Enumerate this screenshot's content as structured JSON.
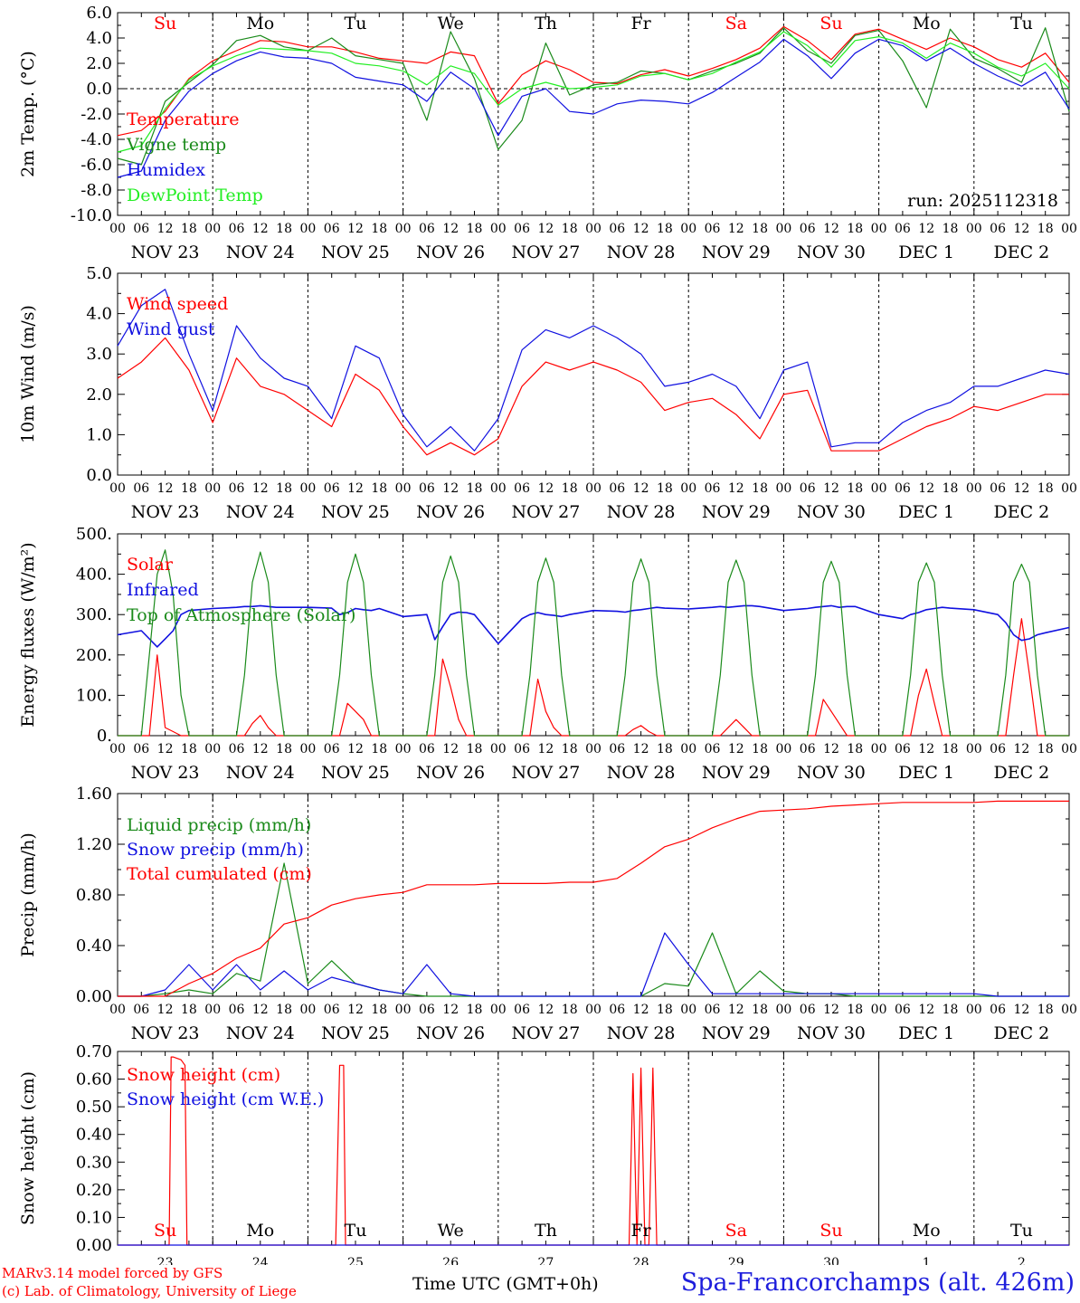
{
  "colors": {
    "red": "#ff0000",
    "green": "#1a8a1a",
    "blue": "#1010e0",
    "lightgreen": "#22ee22"
  },
  "run_label": "run: 2025112318",
  "day_names": [
    "Su",
    "Mo",
    "Tu",
    "We",
    "Th",
    "Fr",
    "Sa",
    "Su",
    "Mo",
    "Tu"
  ],
  "weekend_flags": [
    true,
    false,
    false,
    false,
    false,
    false,
    true,
    true,
    false,
    false
  ],
  "date_labels": [
    "NOV 23",
    "NOV 24",
    "NOV 25",
    "NOV 26",
    "NOV 27",
    "NOV 28",
    "NOV 29",
    "NOV 30",
    "DEC  1",
    "DEC  2"
  ],
  "hour_ticks": [
    "00",
    "06",
    "12",
    "18"
  ],
  "final_hour_tick": "00",
  "bottom_day_numbers": [
    "23",
    "24",
    "25",
    "26",
    "27",
    "28",
    "29",
    "30",
    "1",
    "2"
  ],
  "footer": {
    "credit_line1": "MARv3.14 model forced by GFS",
    "credit_line2": "(c) Lab. of Climatology, University of Liege",
    "x_axis_title": "Time UTC (GMT+0h)",
    "station": "Spa-Francorchamps (alt. 426m)"
  },
  "chart_data": [
    {
      "type": "line",
      "ylabel": "2m Temp. (°C)",
      "ylim": [
        -10,
        6
      ],
      "yticks": [
        6,
        4,
        2,
        0,
        -2,
        -4,
        -6,
        -8,
        -10
      ],
      "ytick_labels": [
        "6.0",
        "4.0",
        "2.0",
        "0.0",
        "-2.0",
        "-4.0",
        "-6.0",
        "-8.0",
        "-10.0"
      ],
      "zero_line": true,
      "x_hours_from_start": [
        0,
        6,
        12,
        18,
        24,
        30,
        36,
        42,
        48,
        54,
        60,
        66,
        72,
        78,
        84,
        90,
        96,
        102,
        108,
        114,
        120,
        126,
        132,
        138,
        144,
        150,
        156,
        162,
        168,
        174,
        180,
        186,
        192,
        198,
        204,
        210,
        216,
        222,
        228,
        234,
        240
      ],
      "series": [
        {
          "name": "Temperature",
          "color": "red",
          "values": [
            -3.7,
            -3.3,
            -1.8,
            0.8,
            2.2,
            3.0,
            3.8,
            3.7,
            3.3,
            3.3,
            2.9,
            2.4,
            2.2,
            2.0,
            2.9,
            2.6,
            -1.2,
            1.1,
            2.2,
            1.5,
            0.5,
            0.4,
            1.1,
            1.5,
            1.0,
            1.6,
            2.3,
            3.2,
            4.9,
            3.8,
            2.3,
            4.3,
            4.7,
            3.9,
            3.1,
            4.0,
            3.3,
            2.3,
            1.7,
            2.8,
            0.5
          ]
        },
        {
          "name": "Vigne temp",
          "color": "green",
          "values": [
            -5.5,
            -6.0,
            -1.0,
            0.5,
            1.9,
            3.8,
            4.2,
            3.3,
            3.0,
            4.0,
            2.6,
            2.3,
            2.0,
            -2.5,
            4.5,
            0.8,
            -4.8,
            -2.5,
            3.6,
            -0.5,
            0.3,
            0.5,
            1.4,
            1.2,
            0.7,
            1.4,
            2.0,
            2.8,
            4.8,
            3.0,
            2.0,
            4.2,
            4.6,
            2.2,
            -1.5,
            4.7,
            2.4,
            1.6,
            0.5,
            4.8,
            -1.8
          ]
        },
        {
          "name": "Humidex",
          "color": "blue",
          "values": [
            -7.0,
            -6.5,
            -2.5,
            -0.2,
            1.2,
            2.2,
            2.9,
            2.5,
            2.4,
            2.0,
            0.9,
            0.6,
            0.3,
            -1.0,
            1.3,
            0.0,
            -3.7,
            -0.6,
            0.0,
            -1.8,
            -2.0,
            -1.2,
            -0.9,
            -1.0,
            -1.2,
            -0.3,
            0.9,
            2.1,
            3.9,
            2.6,
            0.8,
            2.8,
            3.9,
            3.4,
            2.2,
            3.2,
            2.0,
            1.0,
            0.2,
            1.3,
            -1.6
          ]
        },
        {
          "name": "DewPoint Temp",
          "color": "lightgreen",
          "values": [
            -5.0,
            -4.5,
            -1.6,
            0.7,
            1.8,
            2.6,
            3.2,
            3.1,
            3.0,
            2.8,
            2.0,
            1.8,
            1.4,
            0.3,
            1.8,
            1.2,
            -1.3,
            0.0,
            0.5,
            0.0,
            0.1,
            0.3,
            1.0,
            1.2,
            0.7,
            1.2,
            2.1,
            2.9,
            4.5,
            3.4,
            1.7,
            3.8,
            4.1,
            3.6,
            2.4,
            3.6,
            2.8,
            1.7,
            1.0,
            2.0,
            0.0
          ]
        }
      ]
    },
    {
      "type": "line",
      "ylabel": "10m Wind (m/s)",
      "ylim": [
        0,
        5
      ],
      "yticks": [
        5,
        4,
        3,
        2,
        1,
        0
      ],
      "ytick_labels": [
        "5.0",
        "4.0",
        "3.0",
        "2.0",
        "1.0",
        "0.0"
      ],
      "x_hours_from_start": [
        0,
        6,
        12,
        18,
        24,
        30,
        36,
        42,
        48,
        54,
        60,
        66,
        72,
        78,
        84,
        90,
        96,
        102,
        108,
        114,
        120,
        126,
        132,
        138,
        144,
        150,
        156,
        162,
        168,
        174,
        180,
        186,
        192,
        198,
        204,
        210,
        216,
        222,
        228,
        234,
        240
      ],
      "series": [
        {
          "name": "Wind speed",
          "color": "red",
          "values": [
            2.4,
            2.8,
            3.4,
            2.6,
            1.3,
            2.9,
            2.2,
            2.0,
            1.6,
            1.2,
            2.5,
            2.1,
            1.2,
            0.5,
            0.8,
            0.5,
            0.9,
            2.2,
            2.8,
            2.6,
            2.8,
            2.6,
            2.3,
            1.6,
            1.8,
            1.9,
            1.5,
            0.9,
            2.0,
            2.1,
            0.6,
            0.6,
            0.6,
            0.9,
            1.2,
            1.4,
            1.7,
            1.6,
            1.8,
            2.0,
            2.0
          ]
        },
        {
          "name": "Wind gust",
          "color": "blue",
          "values": [
            3.2,
            4.2,
            4.6,
            3.0,
            1.6,
            3.7,
            2.9,
            2.4,
            2.2,
            1.4,
            3.2,
            2.9,
            1.5,
            0.7,
            1.2,
            0.6,
            1.4,
            3.1,
            3.6,
            3.4,
            3.7,
            3.4,
            3.0,
            2.2,
            2.3,
            2.5,
            2.2,
            1.4,
            2.6,
            2.8,
            0.7,
            0.8,
            0.8,
            1.3,
            1.6,
            1.8,
            2.2,
            2.2,
            2.4,
            2.6,
            2.5
          ]
        }
      ]
    },
    {
      "type": "line",
      "ylabel": "Energy fluxes (W/m²)",
      "ylim": [
        0,
        500
      ],
      "yticks": [
        500,
        400,
        300,
        200,
        100,
        0
      ],
      "ytick_labels": [
        "500.",
        "400.",
        "300.",
        "200.",
        "100.",
        "0."
      ],
      "x_hours_from_start": [
        0,
        6,
        8,
        10,
        12,
        14,
        16,
        18,
        24,
        30,
        32,
        34,
        36,
        38,
        40,
        42,
        48,
        54,
        56,
        58,
        60,
        62,
        64,
        66,
        72,
        78,
        80,
        82,
        84,
        86,
        88,
        90,
        96,
        102,
        104,
        106,
        108,
        110,
        112,
        114,
        120,
        126,
        128,
        130,
        132,
        134,
        136,
        138,
        144,
        150,
        152,
        154,
        156,
        158,
        160,
        162,
        168,
        174,
        176,
        178,
        180,
        182,
        184,
        186,
        192,
        198,
        200,
        202,
        204,
        206,
        208,
        210,
        216,
        222,
        224,
        226,
        228,
        230,
        232,
        234,
        240
      ],
      "series": [
        {
          "name": "Solar",
          "color": "red",
          "values": [
            0,
            0,
            0,
            200,
            20,
            10,
            0,
            0,
            0,
            0,
            0,
            30,
            50,
            20,
            0,
            0,
            0,
            0,
            0,
            80,
            60,
            40,
            0,
            0,
            0,
            0,
            0,
            190,
            120,
            40,
            0,
            0,
            0,
            0,
            0,
            140,
            60,
            20,
            0,
            0,
            0,
            0,
            0,
            15,
            25,
            10,
            0,
            0,
            0,
            0,
            0,
            20,
            40,
            20,
            0,
            0,
            0,
            0,
            0,
            90,
            60,
            30,
            0,
            0,
            0,
            0,
            0,
            100,
            165,
            80,
            0,
            0,
            0,
            0,
            0,
            150,
            290,
            150,
            0,
            0,
            0
          ]
        },
        {
          "name": "Infrared",
          "color": "blue",
          "values": [
            250,
            260,
            240,
            220,
            240,
            260,
            300,
            310,
            315,
            318,
            320,
            320,
            322,
            320,
            318,
            318,
            318,
            316,
            300,
            305,
            315,
            312,
            310,
            315,
            295,
            300,
            238,
            270,
            300,
            306,
            305,
            300,
            228,
            290,
            300,
            305,
            300,
            298,
            295,
            300,
            310,
            308,
            306,
            310,
            312,
            315,
            318,
            316,
            314,
            318,
            320,
            318,
            320,
            322,
            322,
            320,
            310,
            315,
            318,
            320,
            322,
            318,
            320,
            320,
            300,
            290,
            300,
            305,
            312,
            315,
            318,
            316,
            312,
            300,
            280,
            250,
            236,
            240,
            250,
            255,
            268
          ]
        },
        {
          "name": "Top of Atmosphere (Solar)",
          "color": "green",
          "values": [
            0,
            0,
            200,
            400,
            460,
            350,
            100,
            0,
            0,
            0,
            150,
            380,
            455,
            380,
            150,
            0,
            0,
            0,
            150,
            380,
            450,
            380,
            150,
            0,
            0,
            0,
            150,
            380,
            445,
            380,
            150,
            0,
            0,
            0,
            150,
            380,
            440,
            380,
            150,
            0,
            0,
            0,
            150,
            380,
            438,
            380,
            150,
            0,
            0,
            0,
            150,
            380,
            435,
            380,
            150,
            0,
            0,
            0,
            150,
            380,
            432,
            380,
            150,
            0,
            0,
            0,
            150,
            380,
            428,
            380,
            150,
            0,
            0,
            0,
            150,
            380,
            425,
            380,
            150,
            0,
            0
          ]
        }
      ]
    },
    {
      "type": "line",
      "ylabel": "Precip (mm/h)",
      "ylim": [
        0,
        1.6
      ],
      "yticks": [
        1.6,
        1.2,
        0.8,
        0.4,
        0.0
      ],
      "ytick_labels": [
        "1.60",
        "1.20",
        "0.80",
        "0.40",
        "0.00"
      ],
      "x_hours_from_start": [
        0,
        6,
        12,
        18,
        24,
        30,
        36,
        42,
        48,
        54,
        60,
        66,
        72,
        78,
        84,
        90,
        96,
        102,
        108,
        114,
        120,
        126,
        132,
        138,
        144,
        150,
        156,
        162,
        168,
        174,
        180,
        186,
        192,
        198,
        204,
        210,
        216,
        222,
        228,
        234,
        240
      ],
      "series": [
        {
          "name": "Liquid precip (mm/h)",
          "color": "green",
          "values": [
            0.0,
            0.0,
            0.02,
            0.05,
            0.02,
            0.18,
            0.12,
            1.05,
            0.1,
            0.28,
            0.1,
            0.05,
            0.02,
            0.0,
            0.0,
            0.0,
            0.0,
            0.0,
            0.0,
            0.0,
            0.0,
            0.0,
            0.0,
            0.1,
            0.08,
            0.5,
            0.02,
            0.2,
            0.04,
            0.02,
            0.02,
            0.0,
            0.0,
            0.0,
            0.0,
            0.0,
            0.0,
            0.0,
            0.0,
            0.0,
            0.0
          ]
        },
        {
          "name": "Snow precip (mm/h)",
          "color": "blue",
          "values": [
            0.0,
            0.0,
            0.05,
            0.25,
            0.05,
            0.25,
            0.05,
            0.2,
            0.05,
            0.15,
            0.1,
            0.05,
            0.02,
            0.25,
            0.02,
            0.0,
            0.0,
            0.0,
            0.0,
            0.0,
            0.0,
            0.0,
            0.0,
            0.5,
            0.25,
            0.02,
            0.02,
            0.02,
            0.02,
            0.02,
            0.02,
            0.02,
            0.02,
            0.02,
            0.02,
            0.02,
            0.02,
            0.0,
            0.0,
            0.0,
            0.0
          ]
        },
        {
          "name": "Total cumulated (cm)",
          "color": "red",
          "values": [
            0.0,
            0.0,
            0.0,
            0.1,
            0.18,
            0.3,
            0.38,
            0.57,
            0.62,
            0.72,
            0.77,
            0.8,
            0.82,
            0.88,
            0.88,
            0.88,
            0.89,
            0.89,
            0.89,
            0.9,
            0.9,
            0.93,
            1.05,
            1.18,
            1.24,
            1.33,
            1.4,
            1.46,
            1.47,
            1.48,
            1.5,
            1.51,
            1.52,
            1.53,
            1.53,
            1.53,
            1.53,
            1.54,
            1.54,
            1.54,
            1.54
          ]
        }
      ]
    },
    {
      "type": "line",
      "ylabel": "Snow height (cm)",
      "ylim": [
        0,
        0.7
      ],
      "yticks": [
        0.7,
        0.6,
        0.5,
        0.4,
        0.3,
        0.2,
        0.1,
        0.0
      ],
      "ytick_labels": [
        "0.70",
        "0.60",
        "0.50",
        "0.40",
        "0.30",
        "0.20",
        "0.10",
        "0.00"
      ],
      "x_hours_from_start": [
        0,
        13,
        13.5,
        14,
        16,
        17,
        17.5,
        55,
        56,
        57,
        57.5,
        129,
        130,
        131,
        132,
        133,
        134,
        135,
        136,
        137,
        240
      ],
      "series": [
        {
          "name": "Snow height (cm)",
          "color": "red",
          "values": [
            0,
            0,
            0.68,
            0.68,
            0.67,
            0.65,
            0,
            0,
            0.65,
            0.65,
            0,
            0,
            0.62,
            0,
            0.64,
            0,
            0,
            0.64,
            0,
            0,
            0
          ]
        },
        {
          "name": "Snow height (cm W.E.)",
          "color": "blue",
          "values": [
            0,
            0,
            0,
            0,
            0,
            0,
            0,
            0,
            0,
            0,
            0,
            0,
            0,
            0,
            0,
            0,
            0,
            0,
            0,
            0,
            0
          ]
        }
      ]
    }
  ]
}
